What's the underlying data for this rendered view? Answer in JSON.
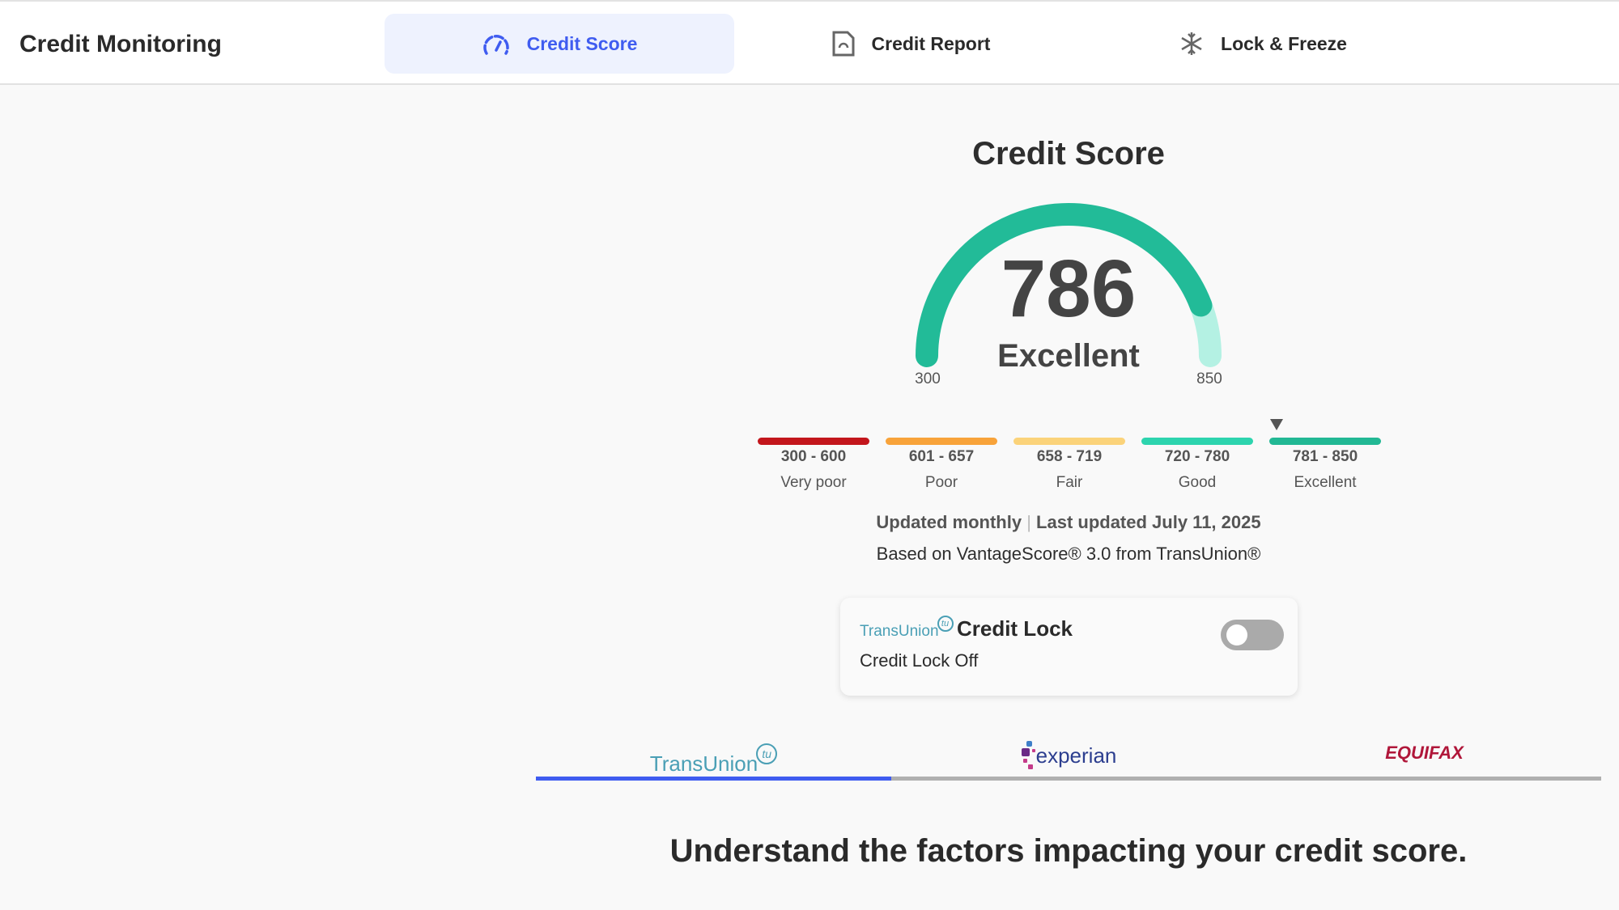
{
  "header": {
    "title": "Credit Monitoring",
    "tabs": [
      {
        "label": "Credit Score",
        "icon": "speedometer-icon",
        "active": true
      },
      {
        "label": "Credit Report",
        "icon": "report-document-icon",
        "active": false
      },
      {
        "label": "Lock & Freeze",
        "icon": "snowflake-icon",
        "active": false
      }
    ],
    "accent_color": "#3f5cf0"
  },
  "score": {
    "title": "Credit Score",
    "value": 786,
    "rating": "Excellent",
    "min_label": "300",
    "max_label": "850",
    "min": 300,
    "max": 850,
    "gauge_color": "#22bb98",
    "gauge_remainder_color": "#b4f1e3"
  },
  "ranges": [
    {
      "range": "300 - 600",
      "label": "Very poor",
      "color": "#c3161c"
    },
    {
      "range": "601 - 657",
      "label": "Poor",
      "color": "#f8a33a"
    },
    {
      "range": "658 - 719",
      "label": "Fair",
      "color": "#fbd37a"
    },
    {
      "range": "720 - 780",
      "label": "Good",
      "color": "#2dd4ae"
    },
    {
      "range": "781 - 850",
      "label": "Excellent",
      "color": "#22b894"
    }
  ],
  "current_range_index": 4,
  "updated": {
    "frequency": "Updated monthly",
    "separator": "|",
    "last_updated": "Last updated July 11, 2025",
    "source": "Based on VantageScore® 3.0 from TransUnion®"
  },
  "credit_lock": {
    "logo": "TransUnion",
    "logo_mark": "tu",
    "title": "Credit Lock",
    "status": "Credit Lock Off",
    "enabled": false
  },
  "bureaus": [
    {
      "name": "TransUnion",
      "mark": "tu",
      "active": true,
      "color": "#4a9fb5"
    },
    {
      "name": "experian",
      "active": false,
      "color": "#2c3e8f"
    },
    {
      "name": "EQUIFAX",
      "active": false,
      "color": "#b0173a"
    }
  ],
  "factors_heading": "Understand the factors impacting your credit score."
}
